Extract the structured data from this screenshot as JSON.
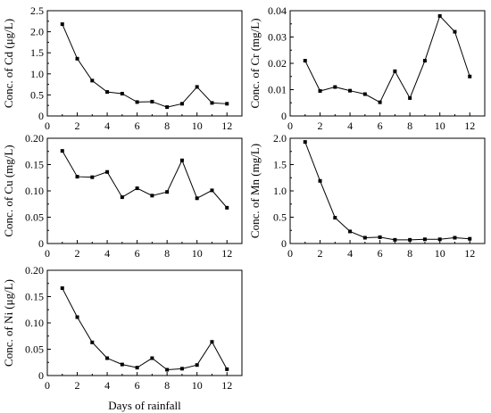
{
  "chart_data": [
    {
      "type": "line",
      "ylabel": "Conc. of Cd (μg/L)",
      "xlabel": "",
      "x": [
        1,
        2,
        3,
        4,
        5,
        6,
        7,
        8,
        9,
        10,
        11,
        12
      ],
      "values": [
        2.18,
        1.36,
        0.84,
        0.57,
        0.53,
        0.33,
        0.34,
        0.21,
        0.29,
        0.69,
        0.31,
        0.29
      ],
      "xlim": [
        0,
        13
      ],
      "ylim": [
        0,
        2.5
      ],
      "xticks": [
        0,
        2,
        4,
        6,
        8,
        10,
        12
      ],
      "yticks": [
        "0",
        "0.5",
        "1.0",
        "1.5",
        "2.0",
        "2.5"
      ],
      "grid": false,
      "marker": "square",
      "color": "#000000"
    },
    {
      "type": "line",
      "ylabel": "Conc. of Cr (mg/L)",
      "xlabel": "",
      "x": [
        1,
        2,
        3,
        4,
        5,
        6,
        7,
        8,
        9,
        10,
        11,
        12
      ],
      "values": [
        0.021,
        0.0095,
        0.011,
        0.0096,
        0.0083,
        0.0052,
        0.017,
        0.0068,
        0.021,
        0.038,
        0.032,
        0.015
      ],
      "xlim": [
        0,
        13
      ],
      "ylim": [
        0,
        0.04
      ],
      "xticks": [
        0,
        2,
        4,
        6,
        8,
        10,
        12
      ],
      "yticks": [
        "0",
        "0.01",
        "0.02",
        "0.03",
        "0.04"
      ],
      "grid": false,
      "marker": "square",
      "color": "#000000"
    },
    {
      "type": "line",
      "ylabel": "Conc. of Cu (mg/L)",
      "xlabel": "",
      "x": [
        1,
        2,
        3,
        4,
        5,
        6,
        7,
        8,
        9,
        10,
        11,
        12
      ],
      "values": [
        0.176,
        0.127,
        0.126,
        0.136,
        0.088,
        0.105,
        0.091,
        0.098,
        0.158,
        0.086,
        0.101,
        0.068
      ],
      "xlim": [
        0,
        13
      ],
      "ylim": [
        0,
        0.2
      ],
      "xticks": [
        0,
        2,
        4,
        6,
        8,
        10,
        12
      ],
      "yticks": [
        "0",
        "0.05",
        "0.10",
        "0.15",
        "0.20"
      ],
      "grid": false,
      "marker": "square",
      "color": "#000000"
    },
    {
      "type": "line",
      "ylabel": "Conc. of Mn (mg/L)",
      "xlabel": "",
      "x": [
        1,
        2,
        3,
        4,
        5,
        6,
        7,
        8,
        9,
        10,
        11,
        12
      ],
      "values": [
        1.93,
        1.19,
        0.49,
        0.23,
        0.11,
        0.12,
        0.07,
        0.07,
        0.08,
        0.08,
        0.11,
        0.09
      ],
      "xlim": [
        0,
        13
      ],
      "ylim": [
        0,
        2.0
      ],
      "xticks": [
        0,
        2,
        4,
        6,
        8,
        10,
        12
      ],
      "yticks": [
        "0",
        "0.5",
        "1.0",
        "1.5",
        "2.0"
      ],
      "grid": false,
      "marker": "square",
      "color": "#000000"
    },
    {
      "type": "line",
      "ylabel": "Conc. of Ni (μg/L)",
      "xlabel": "Days of rainfall",
      "x": [
        1,
        2,
        3,
        4,
        5,
        6,
        7,
        8,
        9,
        10,
        11,
        12
      ],
      "values": [
        0.166,
        0.111,
        0.063,
        0.033,
        0.021,
        0.015,
        0.033,
        0.011,
        0.013,
        0.02,
        0.064,
        0.012
      ],
      "xlim": [
        0,
        13
      ],
      "ylim": [
        0,
        0.2
      ],
      "xticks": [
        0,
        2,
        4,
        6,
        8,
        10,
        12
      ],
      "yticks": [
        "0",
        "0.05",
        "0.10",
        "0.15",
        "0.20"
      ],
      "grid": false,
      "marker": "square",
      "color": "#000000"
    }
  ]
}
